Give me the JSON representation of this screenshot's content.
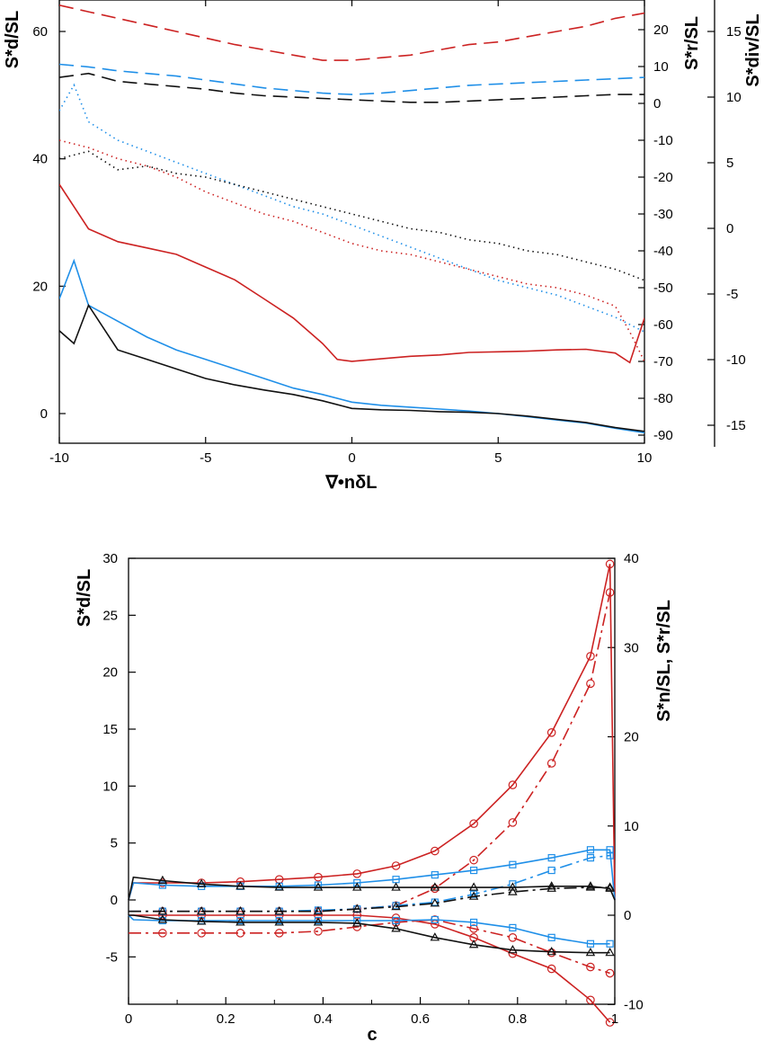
{
  "colors": {
    "red": "#cc2222",
    "blue": "#1f8fe8",
    "black": "#111111"
  },
  "chart_data": [
    {
      "type": "line",
      "xlabel": "∇•nδL",
      "ylabel_left": "S*d/SL",
      "ylabel_right1": "S*r/SL",
      "ylabel_right2": "S*div/SL",
      "xlim": [
        -10,
        10
      ],
      "ylim_left": [
        -5,
        65
      ],
      "ylim_right1": [
        -90,
        25
      ],
      "ylim_right2": [
        -17,
        17
      ],
      "x_ticks": [
        "-10",
        "-5",
        "0",
        "5",
        "10"
      ],
      "y_ticks_left": [
        "0",
        "20",
        "40",
        "60"
      ],
      "y_ticks_right1": [
        "-90",
        "-80",
        "-70",
        "-60",
        "-50",
        "-40",
        "-30",
        "-20",
        "-10",
        "0",
        "10",
        "20"
      ],
      "y_ticks_right2": [
        "-15",
        "-10",
        "-5",
        "0",
        "5",
        "10",
        "15"
      ],
      "series": [
        {
          "color": "red",
          "style": "solid",
          "axis": "left",
          "x": [
            -10,
            -9,
            -8,
            -7,
            -6,
            -5,
            -4,
            -3,
            -2,
            -1,
            -0.5,
            0,
            1,
            2,
            3,
            4,
            5,
            6,
            7,
            8,
            9,
            9.5,
            10
          ],
          "y": [
            36,
            29,
            27,
            26,
            25,
            23,
            21,
            18,
            15,
            11,
            8.5,
            8.2,
            8.6,
            9,
            9.2,
            9.6,
            9.7,
            9.8,
            10,
            10.1,
            9.5,
            8,
            15
          ]
        },
        {
          "color": "blue",
          "style": "solid",
          "axis": "left",
          "x": [
            -10,
            -9.5,
            -9,
            -8,
            -7,
            -6,
            -5,
            -4,
            -3,
            -2,
            -1,
            0,
            1,
            2,
            3,
            4,
            5,
            6,
            7,
            8,
            9,
            10
          ],
          "y": [
            18,
            24,
            17,
            14.5,
            12,
            10,
            8.5,
            7,
            5.5,
            4,
            3,
            1.8,
            1.3,
            1,
            0.7,
            0.4,
            0,
            -0.5,
            -1,
            -1.5,
            -2.3,
            -3
          ]
        },
        {
          "color": "black",
          "style": "solid",
          "axis": "left",
          "x": [
            -10,
            -9.5,
            -9,
            -8,
            -7,
            -6,
            -5,
            -4,
            -3,
            -2,
            -1,
            0,
            1,
            2,
            3,
            4,
            5,
            6,
            7,
            8,
            9,
            10
          ],
          "y": [
            13,
            11,
            17,
            10,
            8.5,
            7,
            5.5,
            4.5,
            3.7,
            3,
            2,
            0.8,
            0.6,
            0.5,
            0.3,
            0.2,
            0,
            -0.4,
            -0.9,
            -1.4,
            -2.2,
            -2.8
          ]
        },
        {
          "color": "red",
          "style": "dotted",
          "axis": "right1",
          "x": [
            -10,
            -9,
            -8,
            -7,
            -6,
            -5,
            -4,
            -3,
            -2,
            -1,
            0,
            1,
            2,
            3,
            4,
            5,
            6,
            7,
            8,
            9,
            9.5,
            10
          ],
          "y": [
            -10,
            -12,
            -15,
            -17,
            -20,
            -24,
            -27,
            -30,
            -32,
            -35,
            -38,
            -40,
            -41,
            -43,
            -45,
            -47,
            -49,
            -50,
            -52,
            -55,
            -62,
            -70
          ]
        },
        {
          "color": "blue",
          "style": "dotted",
          "axis": "right1",
          "x": [
            -10,
            -9.5,
            -9,
            -8,
            -7,
            -6,
            -5,
            -4,
            -3,
            -2,
            -1,
            0,
            1,
            2,
            3,
            4,
            5,
            6,
            7,
            8,
            9,
            10
          ],
          "y": [
            -2,
            5,
            -5,
            -10,
            -13,
            -16,
            -19,
            -22,
            -25,
            -28,
            -30,
            -33,
            -36,
            -39,
            -42,
            -45,
            -48,
            -50,
            -52,
            -55,
            -58,
            -62
          ]
        },
        {
          "color": "black",
          "style": "dotted",
          "axis": "right1",
          "x": [
            -10,
            -9,
            -8,
            -7,
            -6,
            -5,
            -4,
            -3,
            -2,
            -1,
            0,
            1,
            2,
            3,
            4,
            5,
            6,
            7,
            8,
            9,
            10
          ],
          "y": [
            -15,
            -13,
            -18,
            -17,
            -19,
            -20,
            -22,
            -24,
            -26,
            -28,
            -30,
            -32,
            -34,
            -35,
            -37,
            -38,
            -40,
            -41,
            -43,
            -45,
            -48
          ]
        },
        {
          "color": "red",
          "style": "dashed",
          "axis": "right2",
          "x": [
            -10,
            -9,
            -8,
            -7,
            -6,
            -5,
            -4,
            -3,
            -2,
            -1,
            0,
            1,
            2,
            3,
            4,
            5,
            6,
            7,
            8,
            9,
            10
          ],
          "y": [
            17,
            16.5,
            16,
            15.5,
            15,
            14.5,
            14,
            13.6,
            13.2,
            12.8,
            12.8,
            13,
            13.2,
            13.6,
            14,
            14.2,
            14.6,
            15,
            15.4,
            16,
            16.4
          ]
        },
        {
          "color": "blue",
          "style": "dashed",
          "axis": "right2",
          "x": [
            -10,
            -9,
            -8,
            -7,
            -6,
            -5,
            -4,
            -3,
            -2,
            -1,
            0,
            1,
            2,
            3,
            4,
            5,
            6,
            7,
            8,
            9,
            10
          ],
          "y": [
            12.5,
            12.3,
            12,
            11.8,
            11.6,
            11.3,
            11,
            10.7,
            10.5,
            10.3,
            10.2,
            10.3,
            10.5,
            10.7,
            10.9,
            11,
            11.1,
            11.2,
            11.3,
            11.4,
            11.5
          ]
        },
        {
          "color": "black",
          "style": "dashed",
          "axis": "right2",
          "x": [
            -10,
            -9,
            -8,
            -7,
            -6,
            -5,
            -4,
            -3,
            -2,
            -1,
            0,
            1,
            2,
            3,
            4,
            5,
            6,
            7,
            8,
            9,
            10
          ],
          "y": [
            11.5,
            11.8,
            11.2,
            11,
            10.8,
            10.6,
            10.3,
            10.1,
            10,
            9.9,
            9.8,
            9.7,
            9.6,
            9.6,
            9.7,
            9.8,
            9.9,
            10,
            10.1,
            10.2,
            10.2
          ]
        }
      ]
    },
    {
      "type": "line",
      "xlabel": "c",
      "ylabel_left": "S*d/SL",
      "ylabel_right": "S*n/SL, S*r/SL",
      "xlim": [
        0,
        1
      ],
      "ylim_left": [
        -9,
        30
      ],
      "ylim_right": [
        -10,
        40
      ],
      "x_ticks": [
        "0",
        "0.2",
        "0.4",
        "0.6",
        "0.8",
        "1"
      ],
      "y_ticks_left": [
        "-5",
        "0",
        "5",
        "10",
        "15",
        "20",
        "25",
        "30"
      ],
      "y_ticks_right": [
        "-10",
        "0",
        "10",
        "20",
        "30",
        "40"
      ],
      "series": [
        {
          "color": "red",
          "style": "solid",
          "marker": "circle",
          "axis": "left",
          "x": [
            0,
            0.01,
            0.07,
            0.15,
            0.23,
            0.31,
            0.39,
            0.47,
            0.55,
            0.63,
            0.71,
            0.79,
            0.87,
            0.95,
            0.99,
            1
          ],
          "y": [
            0,
            1.5,
            1.5,
            1.5,
            1.6,
            1.8,
            2,
            2.3,
            3,
            4.3,
            6.7,
            10.1,
            14.7,
            21.4,
            29.5,
            0
          ]
        },
        {
          "color": "red",
          "style": "dashdot",
          "marker": "circle",
          "axis": "left",
          "x": [
            0,
            0.01,
            0.07,
            0.15,
            0.23,
            0.31,
            0.39,
            0.47,
            0.55,
            0.63,
            0.71,
            0.79,
            0.87,
            0.95,
            0.99
          ],
          "y": [
            -1,
            -1,
            -1,
            -1,
            -1,
            -1,
            -1,
            -0.8,
            -0.5,
            1,
            3.5,
            6.8,
            12,
            19,
            27
          ]
        },
        {
          "color": "red",
          "style": "solid",
          "marker": "circle",
          "axis": "right",
          "x": [
            0,
            0.01,
            0.07,
            0.15,
            0.23,
            0.31,
            0.39,
            0.47,
            0.55,
            0.63,
            0.71,
            0.79,
            0.87,
            0.95,
            0.99
          ],
          "y": [
            0,
            0,
            0,
            0,
            0,
            0,
            0,
            0,
            -0.3,
            -1,
            -2.5,
            -4.3,
            -6,
            -9.5,
            -12
          ]
        },
        {
          "color": "red",
          "style": "dashdot",
          "marker": "circle",
          "axis": "right",
          "x": [
            0,
            0.01,
            0.07,
            0.15,
            0.23,
            0.31,
            0.39,
            0.47,
            0.55,
            0.63,
            0.71,
            0.79,
            0.87,
            0.95,
            0.99
          ],
          "y": [
            -2,
            -2,
            -2,
            -2,
            -2,
            -2,
            -1.8,
            -1.3,
            -0.8,
            -0.5,
            -1.5,
            -2.5,
            -4.2,
            -5.8,
            -6.5
          ]
        },
        {
          "color": "blue",
          "style": "solid",
          "marker": "square",
          "axis": "left",
          "x": [
            0,
            0.01,
            0.07,
            0.15,
            0.23,
            0.31,
            0.39,
            0.47,
            0.55,
            0.63,
            0.71,
            0.79,
            0.87,
            0.95,
            0.99,
            1
          ],
          "y": [
            0,
            1.5,
            1.3,
            1.2,
            1.2,
            1.2,
            1.3,
            1.5,
            1.8,
            2.2,
            2.6,
            3.1,
            3.7,
            4.4,
            4.4,
            0
          ]
        },
        {
          "color": "blue",
          "style": "dashdot",
          "marker": "square",
          "axis": "left",
          "x": [
            0,
            0.01,
            0.07,
            0.15,
            0.23,
            0.31,
            0.39,
            0.47,
            0.55,
            0.63,
            0.71,
            0.79,
            0.87,
            0.95,
            0.99
          ],
          "y": [
            -1,
            -1,
            -1,
            -1,
            -1,
            -1,
            -0.9,
            -0.8,
            -0.5,
            -0.2,
            0.5,
            1.4,
            2.6,
            3.7,
            3.9
          ]
        },
        {
          "color": "blue",
          "style": "solid",
          "marker": "square",
          "axis": "right",
          "x": [
            0,
            0.01,
            0.07,
            0.15,
            0.23,
            0.31,
            0.39,
            0.47,
            0.55,
            0.63,
            0.71,
            0.79,
            0.87,
            0.95,
            0.99
          ],
          "y": [
            0,
            -0.5,
            -0.6,
            -0.6,
            -0.6,
            -0.6,
            -0.6,
            -0.6,
            -0.6,
            -0.5,
            -0.8,
            -1.4,
            -2.5,
            -3.2,
            -3.2
          ]
        },
        {
          "color": "black",
          "style": "solid",
          "marker": "triangle",
          "axis": "left",
          "x": [
            0,
            0.01,
            0.07,
            0.15,
            0.23,
            0.31,
            0.39,
            0.47,
            0.55,
            0.63,
            0.71,
            0.79,
            0.87,
            0.95,
            0.99,
            1
          ],
          "y": [
            0,
            2,
            1.7,
            1.4,
            1.2,
            1.1,
            1.1,
            1.1,
            1.1,
            1.1,
            1.1,
            1.1,
            1.2,
            1.2,
            1,
            0
          ]
        },
        {
          "color": "black",
          "style": "dashdot",
          "marker": "triangle",
          "axis": "left",
          "x": [
            0,
            0.01,
            0.07,
            0.15,
            0.23,
            0.31,
            0.39,
            0.47,
            0.55,
            0.63,
            0.71,
            0.79,
            0.87,
            0.95,
            0.99
          ],
          "y": [
            -1,
            -1,
            -1,
            -1,
            -1,
            -1,
            -1,
            -0.8,
            -0.6,
            -0.3,
            0.3,
            0.7,
            1,
            1.1,
            1.1
          ]
        },
        {
          "color": "black",
          "style": "solid",
          "marker": "triangle",
          "axis": "right",
          "x": [
            0,
            0.01,
            0.07,
            0.15,
            0.23,
            0.31,
            0.39,
            0.47,
            0.55,
            0.63,
            0.71,
            0.79,
            0.87,
            0.95,
            0.99
          ],
          "y": [
            0,
            0,
            -0.5,
            -0.7,
            -0.8,
            -0.8,
            -0.8,
            -0.9,
            -1.5,
            -2.5,
            -3.3,
            -3.9,
            -4.1,
            -4.2,
            -4.2
          ]
        }
      ]
    }
  ]
}
